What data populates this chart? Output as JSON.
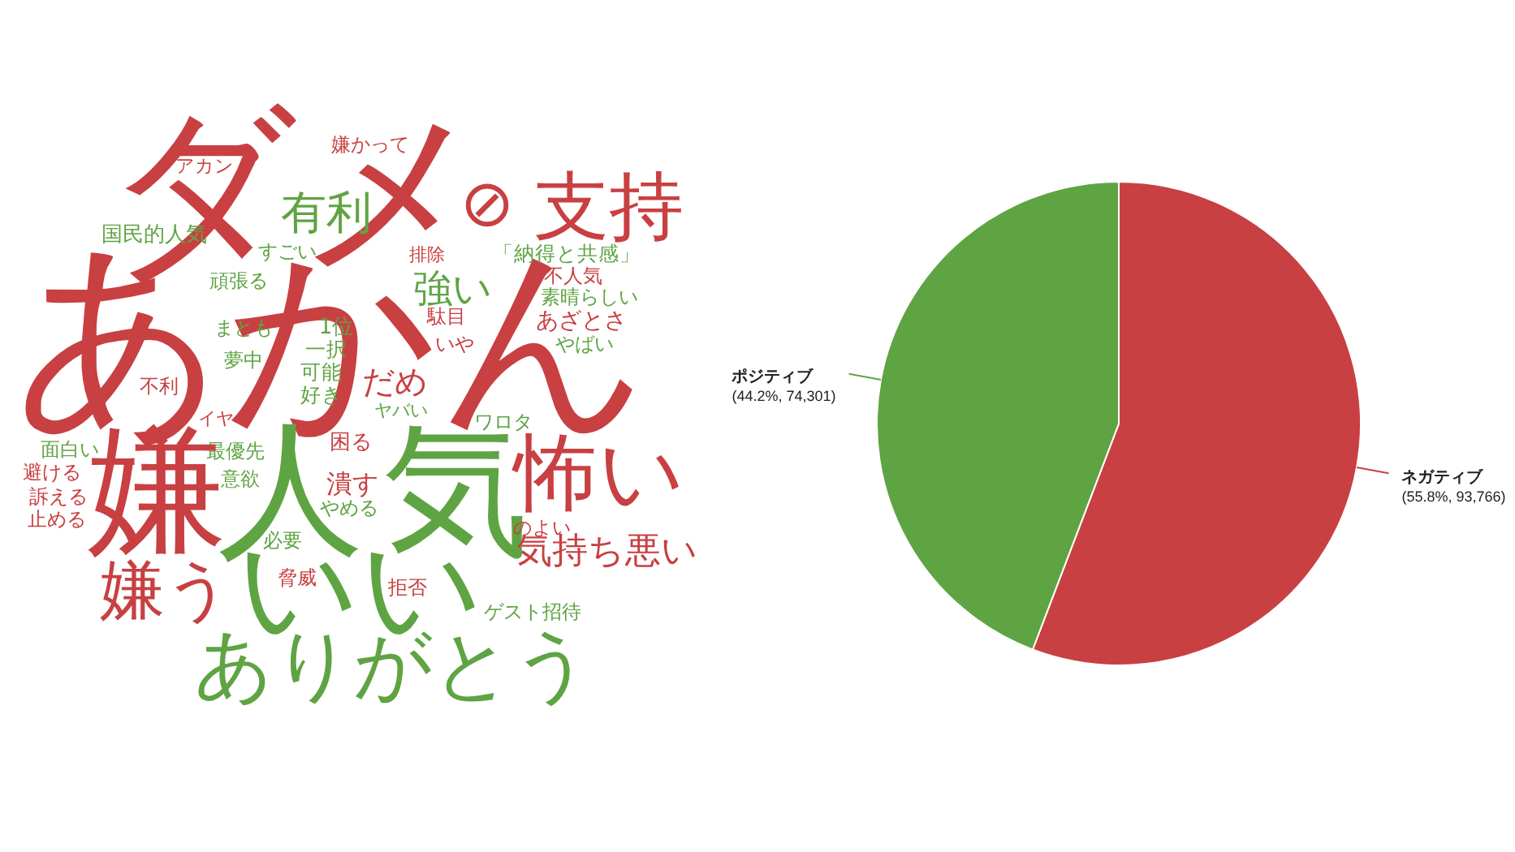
{
  "chart_data": [
    {
      "type": "other",
      "categories": [
        "ダメ",
        "あかん",
        "⊘",
        "支持",
        "有利",
        "嫌かって",
        "アカン",
        "国民的人気",
        "すごい",
        "頑張る",
        "排除",
        "「納得と共感」",
        "強い",
        "不人気",
        "素晴らしい",
        "駄目",
        "あざとさ",
        "まとも",
        "1位",
        "いや",
        "やばい",
        "一択",
        "夢中",
        "可能",
        "だめ",
        "不利",
        "好き",
        "ヤバい",
        "イヤ",
        "ワロタ",
        "困る",
        "面白い",
        "最優先",
        "避ける",
        "意欲",
        "潰す",
        "嫌",
        "人気",
        "怖い",
        "訴える",
        "やめる",
        "止める",
        "のよい",
        "必要",
        "気持ち悪い",
        "脅威",
        "嫌う",
        "いい",
        "拒否",
        "ゲスト招待",
        "ありがとう"
      ],
      "colors": [
        "#c84042",
        "#c84042",
        "#c84042",
        "#c84042",
        "#5fa443",
        "#c84042",
        "#c84042",
        "#5fa443",
        "#5fa443",
        "#5fa443",
        "#c84042",
        "#5fa443",
        "#5fa443",
        "#c84042",
        "#5fa443",
        "#c84042",
        "#c84042",
        "#5fa443",
        "#5fa443",
        "#c84042",
        "#5fa443",
        "#5fa443",
        "#5fa443",
        "#5fa443",
        "#c84042",
        "#c84042",
        "#5fa443",
        "#5fa443",
        "#c84042",
        "#5fa443",
        "#c84042",
        "#5fa443",
        "#5fa443",
        "#c84042",
        "#5fa443",
        "#c84042",
        "#c84042",
        "#5fa443",
        "#c84042",
        "#c84042",
        "#5fa443",
        "#c84042",
        "#c84042",
        "#5fa443",
        "#c84042",
        "#c84042",
        "#c84042",
        "#5fa443",
        "#c84042",
        "#5fa443",
        "#5fa443"
      ]
    },
    {
      "type": "pie",
      "categories": [
        "ネガティブ",
        "ポジティブ"
      ],
      "values": [
        93766,
        74301
      ],
      "colors": [
        "#c84042",
        "#5fa443"
      ],
      "value_labels": [
        "(55.8%, 93,766)",
        "(44.2%, 74,301)"
      ]
    }
  ]
}
